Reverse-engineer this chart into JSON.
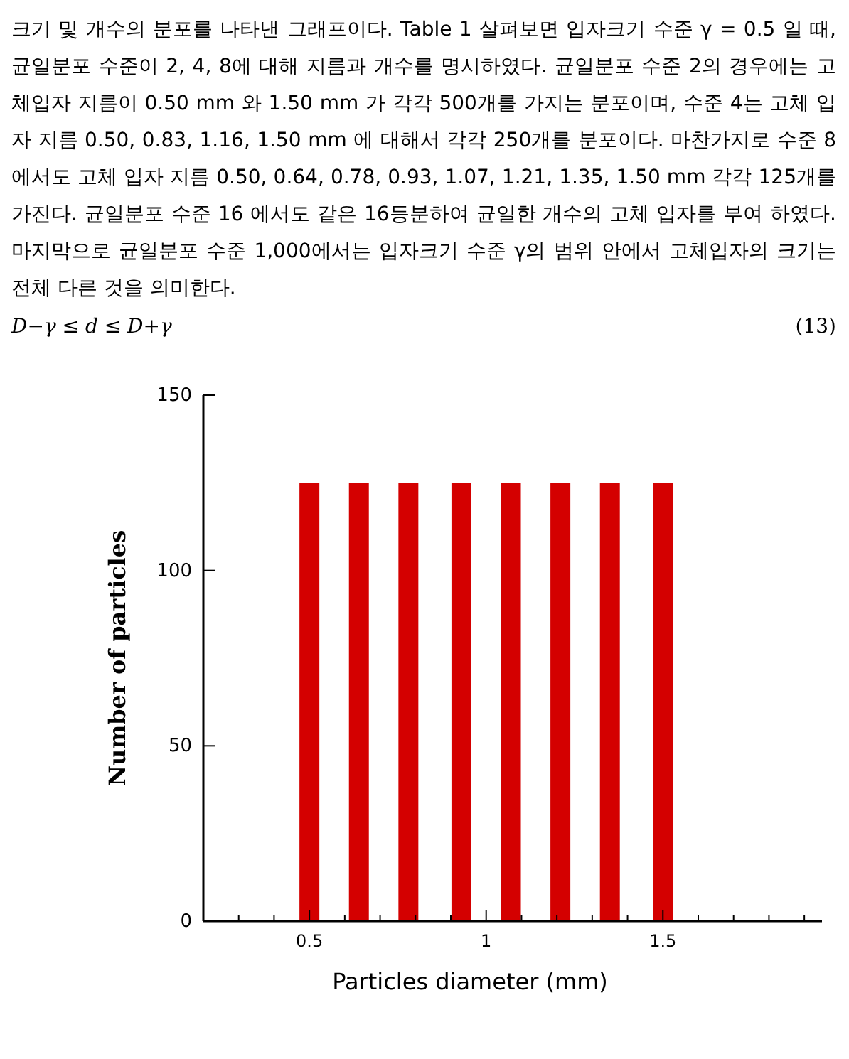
{
  "chart_data": {
    "type": "bar",
    "annotations": [
      "크기 및 개수의 분포를 나타낸 그래프이다. Table 1 살펴보면 입자크기 수준 γ = 0.5 일 때, 균일분포 수준이 2, 4, 8에 대해 지름과 개수를 명시하였다. 균일분포 수준 2의 경우에는 고체입자 지름이 0.50 mm 와 1.50 mm 가 각각 500개를 가지는 분포이며, 수준 4는 고체 입자 지름 0.50, 0.83, 1.16, 1.50 mm 에 대해서 각각 250개를 분포이다. 마찬가지로 수준 8 에서도 고체 입자 지름 0.50, 0.64, 0.78, 0.93, 1.07, 1.21, 1.35, 1.50 mm 각각 125개를 가진다. 균일분포 수준 16 에서도 같은 16등분하여 균일한 개수의 고체 입자를 부여 하였다. 마지막으로 균일분포 수준 1,000에서는 입자크기 수준 γ의 범위 안에서 고체입자의 크기는 전체 다른 것을 의미한다.",
      "D−γ ≤ d ≤ D+γ",
      "(13)"
    ],
    "xlabel": "Particles diameter (mm)",
    "ylabel": "Number of particles",
    "x": [
      0.5,
      0.64,
      0.78,
      0.93,
      1.07,
      1.21,
      1.35,
      1.5
    ],
    "values": [
      125,
      125,
      125,
      125,
      125,
      125,
      125,
      125
    ],
    "color": "#d40000",
    "xlim": [
      0.2,
      1.95
    ],
    "xticks": [
      {
        "value": 0.2,
        "label": null
      },
      {
        "value": 0.3,
        "label": null
      },
      {
        "value": 0.4,
        "label": null
      },
      0.5,
      {
        "value": 0.6,
        "label": null
      },
      {
        "value": 0.7,
        "label": null
      },
      {
        "value": 0.8,
        "label": null
      },
      {
        "value": 0.9,
        "label": null
      },
      1,
      {
        "value": 1.1,
        "label": null
      },
      {
        "value": 1.2,
        "label": null
      },
      {
        "value": 1.3,
        "label": null
      },
      {
        "value": 1.4,
        "label": null
      },
      1.5,
      {
        "value": 1.6,
        "label": null
      },
      {
        "value": 1.7,
        "label": null
      },
      {
        "value": 1.8,
        "label": null
      },
      {
        "value": 1.9,
        "label": null
      }
    ],
    "ylim": [
      0,
      150
    ],
    "yticks": [
      0,
      50,
      100,
      150
    ]
  }
}
